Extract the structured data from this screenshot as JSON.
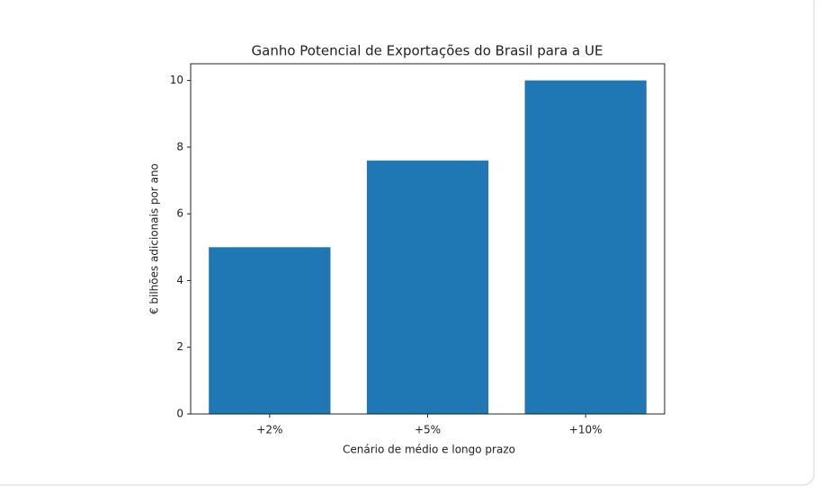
{
  "chart_data": {
    "type": "bar",
    "title": "Ganho Potencial de Exportações do Brasil para a UE",
    "x_label": "Cenário de médio e longo prazo",
    "y_label": "€ bilhões adicionais por ano",
    "categories": [
      "+2%",
      "+5%",
      "+10%"
    ],
    "values": [
      5,
      7.6,
      10
    ],
    "color": "#1f77b4",
    "ylim": [
      0,
      10.5
    ],
    "yticks": [
      0,
      2,
      4,
      6,
      8,
      10
    ],
    "grid": false
  }
}
